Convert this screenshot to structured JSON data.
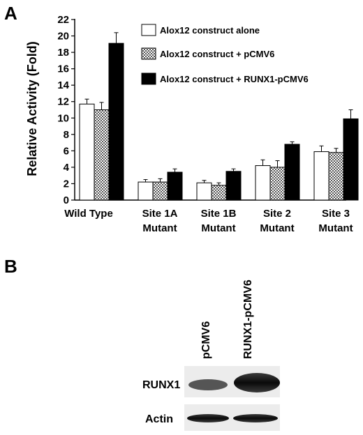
{
  "panels": {
    "a_label": "A",
    "b_label": "B"
  },
  "chart_data": {
    "type": "bar",
    "title": "",
    "xlabel": "",
    "ylabel": "Relative Activity (Fold)",
    "ylim": [
      0,
      22
    ],
    "yticks": [
      0,
      2,
      4,
      6,
      8,
      10,
      12,
      14,
      16,
      18,
      20,
      22
    ],
    "grid": false,
    "legend_position": "top-right",
    "categories": [
      [
        "Wild Type"
      ],
      [
        "Site 1A",
        "Mutant"
      ],
      [
        "Site 1B",
        "Mutant"
      ],
      [
        "Site 2",
        "Mutant"
      ],
      [
        "Site 3",
        "Mutant"
      ]
    ],
    "series": [
      {
        "name": "Alox12 construct alone",
        "fill": "#ffffff",
        "pattern": "none",
        "values": [
          11.7,
          2.2,
          2.1,
          4.2,
          5.9
        ],
        "errors": [
          0.6,
          0.3,
          0.3,
          0.7,
          0.7
        ]
      },
      {
        "name": "Alox12 construct + pCMV6",
        "fill": "#8a8a8a",
        "pattern": "checker",
        "values": [
          11.0,
          2.2,
          1.8,
          4.0,
          5.8
        ],
        "errors": [
          0.9,
          0.4,
          0.3,
          0.8,
          0.5
        ]
      },
      {
        "name": "Alox12 construct + RUNX1-pCMV6",
        "fill": "#000000",
        "pattern": "none",
        "values": [
          19.1,
          3.4,
          3.5,
          6.8,
          9.9
        ],
        "errors": [
          1.3,
          0.4,
          0.3,
          0.3,
          1.1
        ]
      }
    ]
  },
  "blot": {
    "lane_labels": [
      "pCMV6",
      "RUNX1-pCMV6"
    ],
    "row_labels": [
      "RUNX1",
      "Actin"
    ]
  }
}
